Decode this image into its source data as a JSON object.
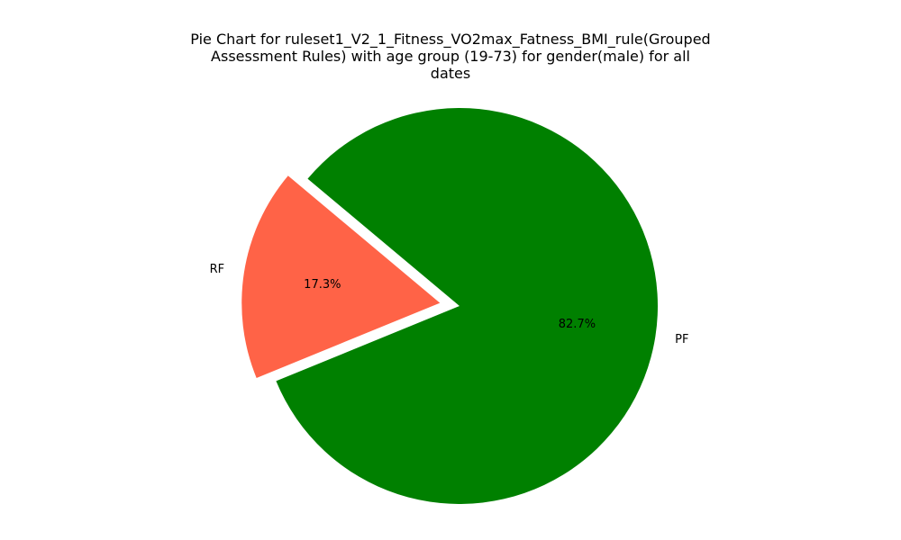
{
  "chart_data": {
    "type": "pie",
    "title_lines": [
      "Pie Chart for ruleset1_V2_1_Fitness_VO2max_Fatness_BMI_rule(Grouped",
      "Assessment Rules) with age group (19-73) for gender(male) for all",
      "dates"
    ],
    "slices": [
      {
        "label": "RF",
        "percent": 17.3,
        "percent_label": "17.3%",
        "color": "#FF6347",
        "exploded": true
      },
      {
        "label": "PF",
        "percent": 82.7,
        "percent_label": "82.7%",
        "color": "#008000",
        "exploded": false
      }
    ],
    "start_angle_deg": 140
  }
}
